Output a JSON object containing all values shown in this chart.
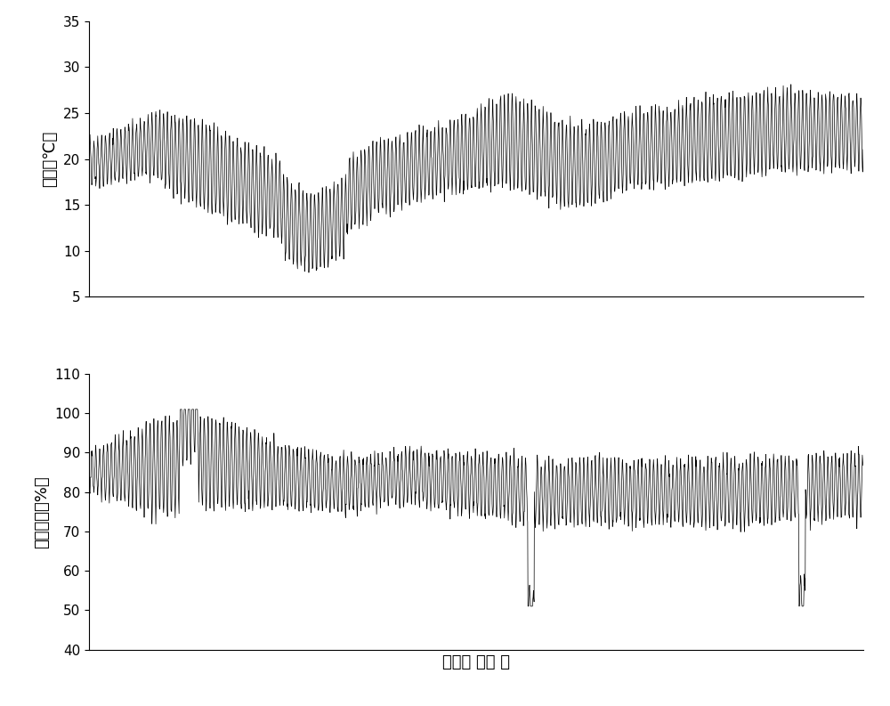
{
  "temp_ylim": [
    5,
    35
  ],
  "temp_yticks": [
    5,
    10,
    15,
    20,
    25,
    30,
    35
  ],
  "temp_ylabel": "温度（℃）",
  "hum_ylim": [
    40,
    110
  ],
  "hum_yticks": [
    40,
    50,
    60,
    70,
    80,
    90,
    100,
    110
  ],
  "hum_ylabel": "相对湿度（%）",
  "xlabel": "时间（ 小时 ）",
  "background_color": "#ffffff",
  "line_color": "#000000",
  "n_points": 2400,
  "temp_period": 12,
  "hum_period": 12
}
